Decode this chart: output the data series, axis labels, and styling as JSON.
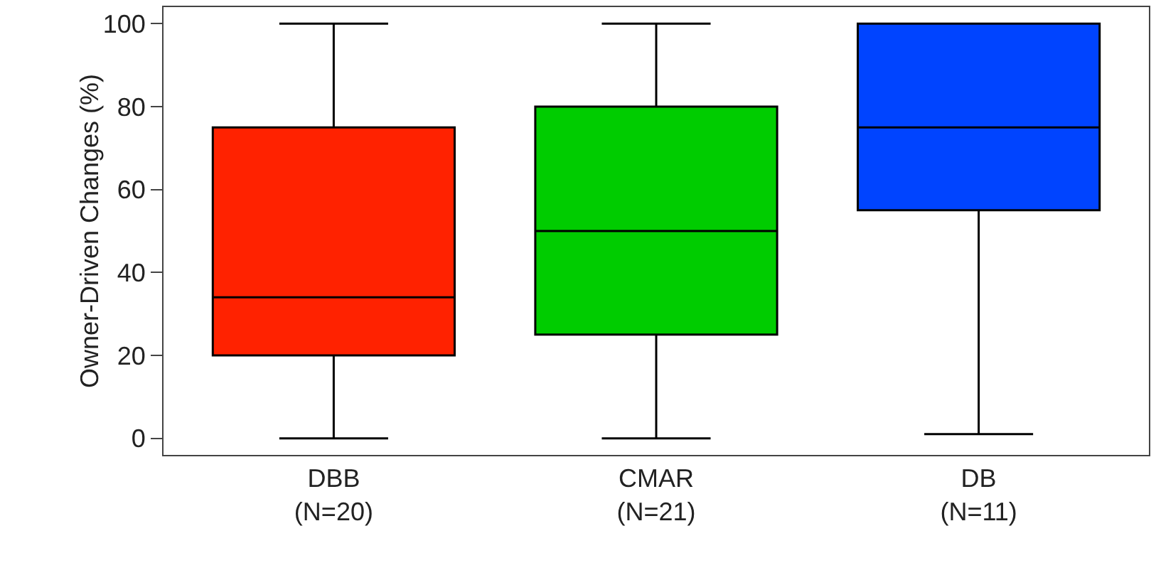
{
  "chart_data": {
    "type": "box",
    "ylabel": "Owner-Driven Changes (%)",
    "categories": [
      "DBB\n(N=20)",
      "CMAR\n(N=21)",
      "DB\n(N=11)"
    ],
    "boxes": [
      {
        "low": 0,
        "q1": 20,
        "median": 34,
        "q3": 75,
        "high": 100
      },
      {
        "low": 0,
        "q1": 25,
        "median": 50,
        "q3": 80,
        "high": 100
      },
      {
        "low": 1,
        "q1": 55,
        "median": 75,
        "q3": 100,
        "high": 100
      }
    ],
    "colors": [
      "#ff2200",
      "#00cc00",
      "#0044ff"
    ],
    "ylim": [
      -4,
      104
    ],
    "yticks": [
      0,
      20,
      40,
      60,
      80,
      100
    ]
  }
}
